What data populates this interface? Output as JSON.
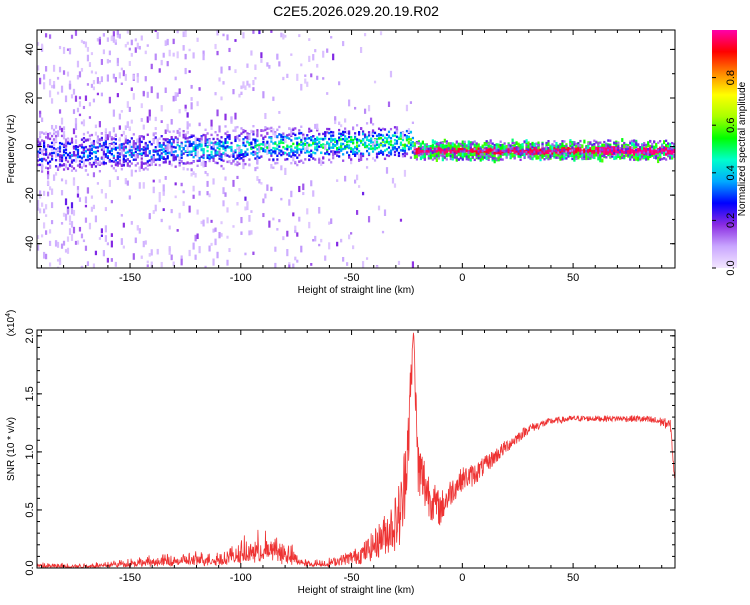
{
  "title": "C2E5.2026.029.20.19.R02",
  "chart_data": [
    {
      "type": "heatmap",
      "xlabel": "Height of straight line (km)",
      "ylabel": "Frequency (Hz)",
      "xlim": [
        -192,
        96
      ],
      "ylim": [
        -50,
        48
      ],
      "xticks": [
        -150,
        -100,
        -50,
        0,
        50
      ],
      "xtick_labels": [
        "-150",
        "-100",
        "-50",
        "0",
        "50"
      ],
      "yticks": [
        -40,
        -20,
        0,
        20,
        40
      ],
      "ytick_labels": [
        "-40",
        "-20",
        "0",
        "20",
        "40"
      ],
      "colorbar": {
        "label": "Normalized spectral amplitude",
        "range": [
          0,
          1
        ],
        "ticks": [
          0.0,
          0.2,
          0.4,
          0.6,
          0.8
        ],
        "tick_labels": [
          "0.0",
          "0.2",
          "0.4",
          "0.6",
          "0.8"
        ],
        "colors": [
          "#f3e6ff",
          "#c9a6ff",
          "#8a2be2",
          "#0000ff",
          "#00aaff",
          "#00ffcc",
          "#00ff00",
          "#aaff00",
          "#ffff00",
          "#ff8800",
          "#ff0000",
          "#ff00aa"
        ]
      }
    },
    {
      "type": "line",
      "xlabel": "Height of straight line (km)",
      "ylabel": "SNR (10 * v/v)",
      "y_multiplier": "(x10",
      "y_multiplier_exp": "4",
      "y_multiplier_close": ")",
      "xlim": [
        -192,
        96
      ],
      "ylim": [
        0,
        2.05
      ],
      "xticks": [
        -150,
        -100,
        -50,
        0,
        50
      ],
      "xtick_labels": [
        "-150",
        "-100",
        "-50",
        "0",
        "50"
      ],
      "yticks": [
        0.0,
        0.5,
        1.0,
        1.5,
        2.0
      ],
      "ytick_labels": [
        "0.0",
        "0.5",
        "1.0",
        "1.5",
        "2.0"
      ],
      "color": "#ee3333",
      "series_envelope": {
        "x": [
          -192,
          -170,
          -150,
          -130,
          -110,
          -100,
          -92,
          -85,
          -78,
          -70,
          -60,
          -50,
          -45,
          -40,
          -35,
          -30,
          -27,
          -24,
          -22,
          -20,
          -17,
          -14,
          -10,
          -5,
          0,
          5,
          10,
          15,
          20,
          25,
          30,
          40,
          50,
          60,
          70,
          80,
          90,
          94,
          96
        ],
        "y": [
          0.03,
          0.03,
          0.06,
          0.09,
          0.11,
          0.17,
          0.22,
          0.24,
          0.15,
          0.05,
          0.06,
          0.12,
          0.17,
          0.26,
          0.38,
          0.52,
          0.7,
          1.45,
          2.05,
          1.0,
          0.85,
          0.68,
          0.58,
          0.72,
          0.82,
          0.85,
          0.92,
          1.0,
          1.08,
          1.15,
          1.22,
          1.28,
          1.3,
          1.3,
          1.3,
          1.3,
          1.28,
          1.25,
          0.75
        ],
        "noise": [
          0.02,
          0.02,
          0.03,
          0.04,
          0.05,
          0.07,
          0.1,
          0.1,
          0.07,
          0.02,
          0.03,
          0.06,
          0.09,
          0.13,
          0.18,
          0.25,
          0.35,
          0.35,
          0.1,
          0.3,
          0.25,
          0.18,
          0.15,
          0.12,
          0.1,
          0.1,
          0.08,
          0.07,
          0.06,
          0.05,
          0.04,
          0.03,
          0.025,
          0.025,
          0.025,
          0.03,
          0.04,
          0.05,
          0.05
        ]
      }
    }
  ]
}
